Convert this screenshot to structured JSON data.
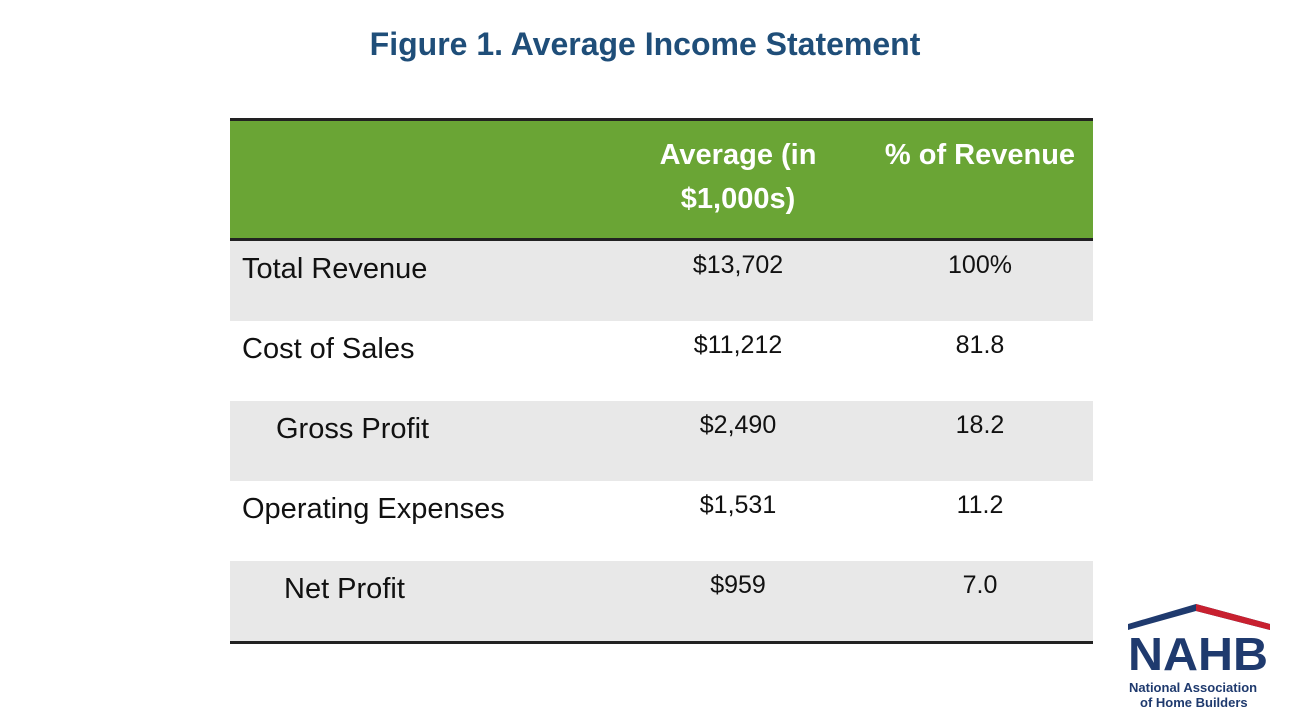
{
  "title": "Figure 1. Average Income Statement",
  "table": {
    "header": [
      "Average (in $1,000s)",
      "% of Revenue"
    ],
    "rows": [
      [
        "Total Revenue",
        "$13,702",
        "100%"
      ],
      [
        "Cost of Sales",
        "$11,212",
        "81.8"
      ],
      [
        "Gross Profit",
        "$2,490",
        "18.2"
      ],
      [
        "Operating Expenses",
        "$1,531",
        "11.2"
      ],
      [
        "Net Profit",
        "$959",
        "7.0"
      ]
    ]
  },
  "logo": {
    "name": "NAHB",
    "line1": "National Association",
    "line2": "of Home Builders"
  }
}
